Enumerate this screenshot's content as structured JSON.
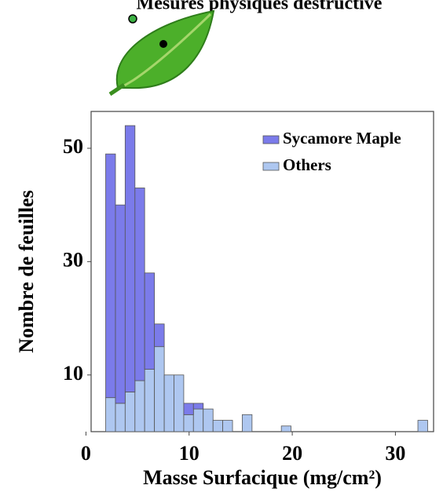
{
  "chart_data": {
    "type": "histogram",
    "title": "Mesures physiques destructive",
    "x_label": "Masse Surfacique (mg/cm²)",
    "y_label": "Nombre de feuilles",
    "bins": [
      1.91,
      2.86,
      3.8,
      4.75,
      5.69,
      6.64,
      7.59,
      8.53,
      9.48,
      10.42,
      11.37,
      12.32,
      13.26,
      14.21,
      15.15,
      16.1,
      17.05,
      17.99,
      18.94,
      19.88,
      20.83,
      21.78,
      22.72,
      23.67,
      24.61,
      25.56,
      26.51,
      27.45,
      28.4,
      29.34,
      30.29,
      31.24,
      32.18,
      33.13
    ],
    "series": [
      {
        "name": "Sycamore Maple",
        "color": "#7b7bea",
        "values": [
          43,
          35,
          47,
          34,
          17,
          4,
          0,
          0,
          2,
          1,
          0,
          0,
          0,
          0,
          0,
          0,
          0,
          0,
          0,
          0,
          0,
          0,
          0,
          0,
          0,
          0,
          0,
          0,
          0,
          0,
          0,
          0,
          0
        ]
      },
      {
        "name": "Others",
        "color": "#aec7f0",
        "values": [
          6,
          5,
          7,
          9,
          11,
          15,
          10,
          10,
          3,
          4,
          4,
          2,
          2,
          0,
          3,
          0,
          0,
          0,
          1,
          0,
          0,
          0,
          0,
          0,
          0,
          0,
          0,
          0,
          0,
          0,
          0,
          0,
          2
        ]
      }
    ],
    "stacked": true,
    "xlim": [
      0.5,
      33.7
    ],
    "ylim": [
      0,
      56.5
    ],
    "xticks": [
      0,
      10,
      20,
      30
    ],
    "yticks": [
      10,
      30,
      50
    ],
    "legend": "upper right"
  }
}
